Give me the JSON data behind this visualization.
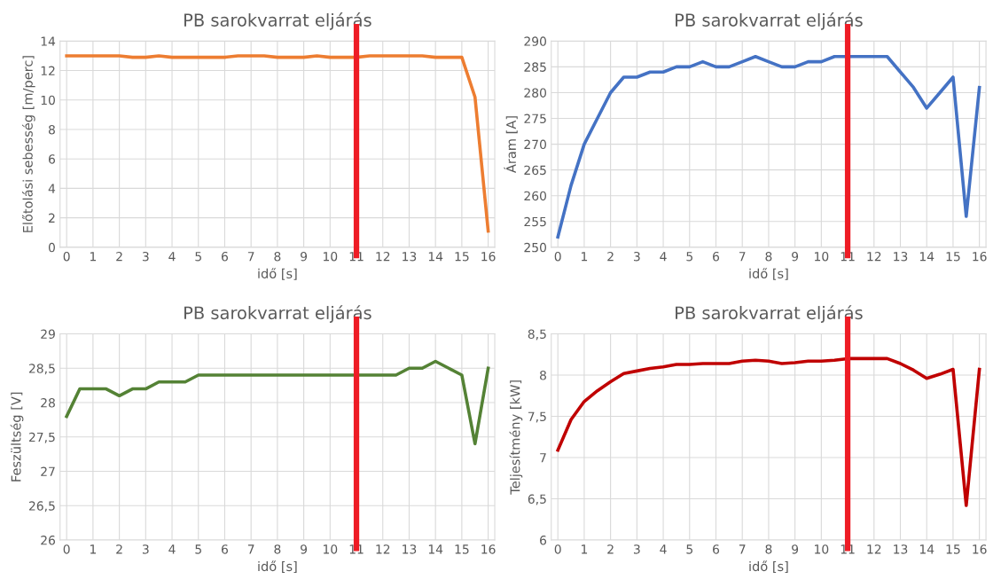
{
  "chart_data": [
    {
      "type": "line",
      "title": "PB sarokvarrat eljárás",
      "xlabel": "idő [s]",
      "ylabel": "Előtolási sebesség [m/perc]",
      "x": [
        0,
        0.5,
        1,
        1.5,
        2,
        2.5,
        3,
        3.5,
        4,
        4.5,
        5,
        5.5,
        6,
        6.5,
        7,
        7.5,
        8,
        8.5,
        9,
        9.5,
        10,
        10.5,
        11,
        11.5,
        12,
        12.5,
        13,
        13.5,
        14,
        14.5,
        15,
        15.5,
        16
      ],
      "series": [
        {
          "color": "#ed7d31",
          "values": [
            13,
            13,
            13,
            13,
            13,
            12.9,
            12.9,
            13,
            12.9,
            12.9,
            12.9,
            12.9,
            12.9,
            13,
            13,
            13,
            12.9,
            12.9,
            12.9,
            13,
            12.9,
            12.9,
            12.9,
            13,
            13,
            13,
            13,
            13,
            12.9,
            12.9,
            12.9,
            10.2,
            1.1
          ]
        }
      ],
      "xlim": [
        -0.25,
        16.25
      ],
      "xticks": [
        0,
        1,
        2,
        3,
        4,
        5,
        6,
        7,
        8,
        9,
        10,
        11,
        12,
        13,
        14,
        15,
        16
      ],
      "ylim": [
        0,
        14
      ],
      "yticks": [
        0,
        2,
        4,
        6,
        8,
        10,
        12,
        14
      ],
      "grid": true,
      "line_style": "solid",
      "marker": "none",
      "ref_lines": [
        {
          "axis": "x",
          "value": 11,
          "color": "#ee1c25"
        }
      ]
    },
    {
      "type": "line",
      "title": "PB sarokvarrat eljárás",
      "xlabel": "idő [s]",
      "ylabel": "Áram [A]",
      "x": [
        0,
        0.5,
        1,
        1.5,
        2,
        2.5,
        3,
        3.5,
        4,
        4.5,
        5,
        5.5,
        6,
        6.5,
        7,
        7.5,
        8,
        8.5,
        9,
        9.5,
        10,
        10.5,
        11,
        11.5,
        12,
        12.5,
        13,
        13.5,
        14,
        14.5,
        15,
        15.5,
        16
      ],
      "series": [
        {
          "color": "#4472c4",
          "values": [
            252,
            262,
            270,
            275,
            280,
            283,
            283,
            284,
            284,
            285,
            285,
            286,
            285,
            285,
            286,
            287,
            286,
            285,
            285,
            286,
            286,
            287,
            287,
            287,
            287,
            287,
            284,
            281,
            277,
            280,
            283,
            256,
            281
          ]
        }
      ],
      "xlim": [
        -0.25,
        16.25
      ],
      "xticks": [
        0,
        1,
        2,
        3,
        4,
        5,
        6,
        7,
        8,
        9,
        10,
        11,
        12,
        13,
        14,
        15,
        16
      ],
      "ylim": [
        250,
        290
      ],
      "yticks": [
        250,
        255,
        260,
        265,
        270,
        275,
        280,
        285,
        290
      ],
      "grid": true,
      "line_style": "solid",
      "marker": "none",
      "ref_lines": [
        {
          "axis": "x",
          "value": 11,
          "color": "#ee1c25"
        }
      ]
    },
    {
      "type": "line",
      "title": "PB sarokvarrat eljárás",
      "xlabel": "idő [s]",
      "ylabel": "Feszültség [V]",
      "x": [
        0,
        0.5,
        1,
        1.5,
        2,
        2.5,
        3,
        3.5,
        4,
        4.5,
        5,
        5.5,
        6,
        6.5,
        7,
        7.5,
        8,
        8.5,
        9,
        9.5,
        10,
        10.5,
        11,
        11.5,
        12,
        12.5,
        13,
        13.5,
        14,
        14.5,
        15,
        15.5,
        16
      ],
      "series": [
        {
          "color": "#548235",
          "values": [
            27.8,
            28.2,
            28.2,
            28.2,
            28.1,
            28.2,
            28.2,
            28.3,
            28.3,
            28.3,
            28.4,
            28.4,
            28.4,
            28.4,
            28.4,
            28.4,
            28.4,
            28.4,
            28.4,
            28.4,
            28.4,
            28.4,
            28.4,
            28.4,
            28.4,
            28.4,
            28.5,
            28.5,
            28.6,
            28.5,
            28.4,
            27.4,
            28.5
          ]
        }
      ],
      "xlim": [
        -0.25,
        16.25
      ],
      "xticks": [
        0,
        1,
        2,
        3,
        4,
        5,
        6,
        7,
        8,
        9,
        10,
        11,
        12,
        13,
        14,
        15,
        16
      ],
      "ylim": [
        26,
        29
      ],
      "yticks": [
        26,
        {
          "value": 26.5,
          "label": "26,5"
        },
        27,
        {
          "value": 27.5,
          "label": "27,5"
        },
        28,
        {
          "value": 28.5,
          "label": "28,5"
        },
        29
      ],
      "grid": true,
      "line_style": "solid",
      "marker": "none",
      "ref_lines": [
        {
          "axis": "x",
          "value": 11,
          "color": "#ee1c25"
        }
      ]
    },
    {
      "type": "line",
      "title": "PB sarokvarrat eljárás",
      "xlabel": "idő [s]",
      "ylabel": "Teljesítmény [kW]",
      "x": [
        0,
        0.5,
        1,
        1.5,
        2,
        2.5,
        3,
        3.5,
        4,
        4.5,
        5,
        5.5,
        6,
        6.5,
        7,
        7.5,
        8,
        8.5,
        9,
        9.5,
        10,
        10.5,
        11,
        11.5,
        12,
        12.5,
        13,
        13.5,
        14,
        14.5,
        15,
        15.5,
        16
      ],
      "series": [
        {
          "color": "#c00000",
          "values": [
            7.09,
            7.46,
            7.68,
            7.81,
            7.92,
            8.02,
            8.05,
            8.08,
            8.1,
            8.13,
            8.13,
            8.14,
            8.14,
            8.14,
            8.17,
            8.18,
            8.17,
            8.14,
            8.15,
            8.17,
            8.17,
            8.18,
            8.2,
            8.2,
            8.2,
            8.2,
            8.14,
            8.06,
            7.96,
            8.01,
            8.07,
            6.42,
            8.07
          ]
        }
      ],
      "xlim": [
        -0.25,
        16.25
      ],
      "xticks": [
        0,
        1,
        2,
        3,
        4,
        5,
        6,
        7,
        8,
        9,
        10,
        11,
        12,
        13,
        14,
        15,
        16
      ],
      "ylim": [
        6,
        8.5
      ],
      "yticks": [
        6,
        {
          "value": 6.5,
          "label": "6,5"
        },
        7,
        {
          "value": 7.5,
          "label": "7,5"
        },
        8,
        {
          "value": 8.5,
          "label": "8,5"
        }
      ],
      "grid": true,
      "line_style": "solid",
      "marker": "none",
      "ref_lines": [
        {
          "axis": "x",
          "value": 11,
          "color": "#ee1c25"
        }
      ]
    }
  ]
}
